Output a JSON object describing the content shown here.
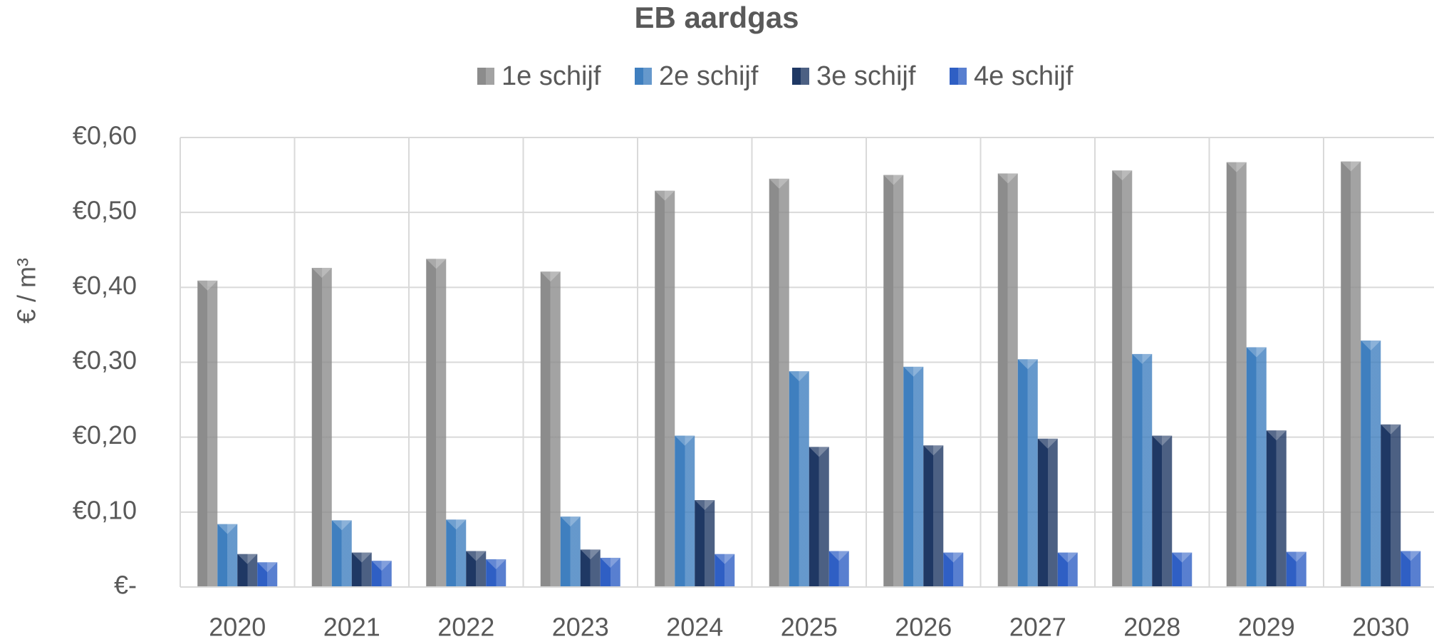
{
  "chart_data": {
    "type": "bar",
    "title": "EB aardgas",
    "ylabel": "€ / m³",
    "categories": [
      "2020",
      "2021",
      "2022",
      "2023",
      "2024",
      "2025",
      "2026",
      "2027",
      "2028",
      "2029",
      "2030"
    ],
    "series": [
      {
        "name": "1e schijf",
        "color": "#8c8c8c",
        "values": [
          0.409,
          0.426,
          0.438,
          0.421,
          0.529,
          0.545,
          0.55,
          0.552,
          0.556,
          0.567,
          0.568
        ]
      },
      {
        "name": "2e schijf",
        "color": "#3f7fbf",
        "values": [
          0.084,
          0.089,
          0.09,
          0.094,
          0.202,
          0.288,
          0.294,
          0.304,
          0.311,
          0.32,
          0.329
        ]
      },
      {
        "name": "3e schijf",
        "color": "#1f3864",
        "values": [
          0.044,
          0.046,
          0.048,
          0.05,
          0.116,
          0.187,
          0.189,
          0.198,
          0.202,
          0.209,
          0.217
        ]
      },
      {
        "name": "4e schijf",
        "color": "#2f5fc4",
        "values": [
          0.033,
          0.035,
          0.037,
          0.039,
          0.044,
          0.048,
          0.046,
          0.046,
          0.046,
          0.047,
          0.048
        ]
      }
    ],
    "ylim": [
      0,
      0.6
    ],
    "yticks": [
      {
        "value": 0,
        "label": "€-"
      },
      {
        "value": 0.1,
        "label": "€0,10"
      },
      {
        "value": 0.2,
        "label": "€0,20"
      },
      {
        "value": 0.3,
        "label": "€0,30"
      },
      {
        "value": 0.4,
        "label": "€0,40"
      },
      {
        "value": 0.5,
        "label": "€0,50"
      },
      {
        "value": 0.6,
        "label": "€0,60"
      }
    ],
    "grid": true,
    "legend": "top"
  }
}
